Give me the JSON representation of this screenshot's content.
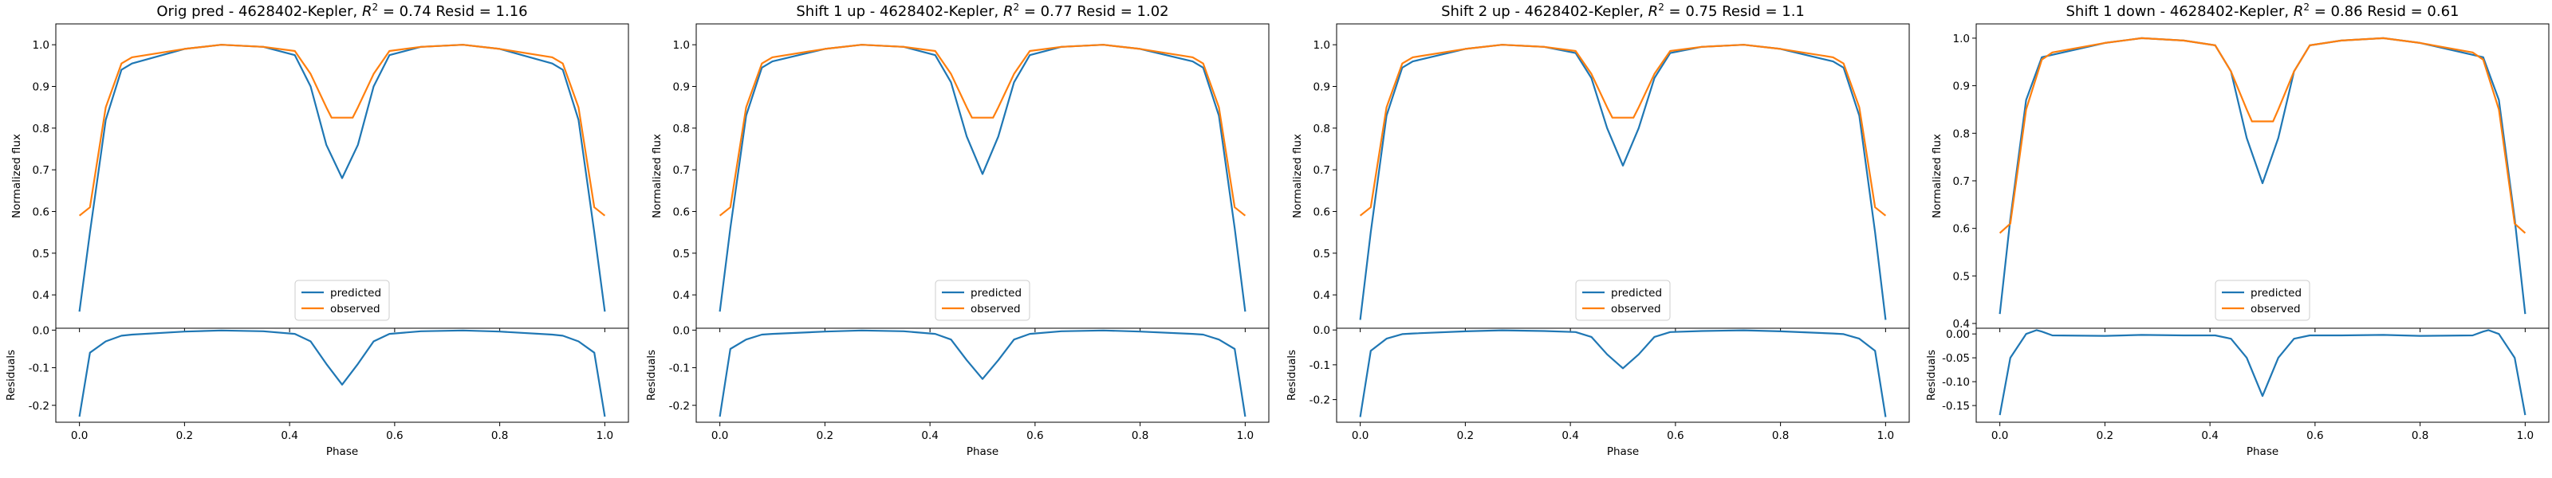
{
  "colors": {
    "predicted": "#1f77b4",
    "observed": "#ff7f0e",
    "axis": "#000000",
    "legend_border": "#cccccc"
  },
  "chart_data": [
    {
      "type": "line",
      "title": "Orig pred - 4628402-Kepler, $R^2 = 0.74$ Resid = 1.16",
      "title_parts": {
        "pre": "Orig pred - 4628402-Kepler, ",
        "r2_label": "R",
        "r2_sup": "2",
        "post": " = 0.74 Resid = 1.16"
      },
      "top": {
        "ylabel": "Normalized flux",
        "ylim": [
          0.32,
          1.05
        ],
        "yticks": [
          0.4,
          0.5,
          0.6,
          0.7,
          0.8,
          0.9,
          1.0
        ],
        "ytick_labels": [
          "0.4",
          "0.5",
          "0.6",
          "0.7",
          "0.8",
          "0.9",
          "1.0"
        ],
        "legend": {
          "placement": "lower-center",
          "entries": [
            "predicted",
            "observed"
          ]
        },
        "series": [
          {
            "name": "predicted",
            "x": [
              0.0,
              0.02,
              0.05,
              0.08,
              0.1,
              0.2,
              0.27,
              0.35,
              0.41,
              0.44,
              0.47,
              0.5,
              0.53,
              0.56,
              0.59,
              0.65,
              0.73,
              0.8,
              0.9,
              0.92,
              0.95,
              0.98,
              1.0
            ],
            "y": [
              0.36,
              0.55,
              0.82,
              0.94,
              0.955,
              0.99,
              1.0,
              0.995,
              0.975,
              0.9,
              0.76,
              0.68,
              0.76,
              0.9,
              0.975,
              0.995,
              1.0,
              0.99,
              0.955,
              0.94,
              0.82,
              0.55,
              0.36
            ]
          },
          {
            "name": "observed",
            "x": [
              0.0,
              0.02,
              0.05,
              0.08,
              0.1,
              0.2,
              0.27,
              0.35,
              0.41,
              0.44,
              0.47,
              0.48,
              0.52,
              0.53,
              0.56,
              0.59,
              0.65,
              0.73,
              0.8,
              0.9,
              0.92,
              0.95,
              0.98,
              1.0
            ],
            "y": [
              0.59,
              0.61,
              0.85,
              0.955,
              0.97,
              0.99,
              1.0,
              0.995,
              0.985,
              0.93,
              0.85,
              0.825,
              0.825,
              0.85,
              0.93,
              0.985,
              0.995,
              1.0,
              0.99,
              0.97,
              0.955,
              0.85,
              0.61,
              0.59
            ]
          }
        ]
      },
      "bottom": {
        "ylabel": "Residuals",
        "xlabel": "Phase",
        "ylim": [
          -0.245,
          0.005
        ],
        "yticks": [
          -0.2,
          -0.1,
          0.0
        ],
        "ytick_labels": [
          "-0.2",
          "-0.1",
          "0.0"
        ],
        "xticks": [
          0.0,
          0.2,
          0.4,
          0.6,
          0.8,
          1.0
        ],
        "xtick_labels": [
          "0.0",
          "0.2",
          "0.4",
          "0.6",
          "0.8",
          "1.0"
        ],
        "series": [
          {
            "name": "residual",
            "x": [
              0.0,
              0.02,
              0.05,
              0.08,
              0.1,
              0.2,
              0.27,
              0.35,
              0.41,
              0.44,
              0.47,
              0.5,
              0.53,
              0.56,
              0.59,
              0.65,
              0.73,
              0.8,
              0.9,
              0.92,
              0.95,
              0.98,
              1.0
            ],
            "y": [
              -0.23,
              -0.06,
              -0.03,
              -0.015,
              -0.012,
              -0.004,
              -0.001,
              -0.003,
              -0.01,
              -0.03,
              -0.09,
              -0.145,
              -0.09,
              -0.03,
              -0.01,
              -0.003,
              -0.001,
              -0.004,
              -0.012,
              -0.015,
              -0.03,
              -0.06,
              -0.23
            ]
          }
        ]
      }
    },
    {
      "type": "line",
      "title": "Shift 1 up - 4628402-Kepler, $R^2 = 0.77$ Resid = 1.02",
      "title_parts": {
        "pre": "Shift 1 up - 4628402-Kepler, ",
        "r2_label": "R",
        "r2_sup": "2",
        "post": " = 0.77 Resid = 1.02"
      },
      "top": {
        "ylabel": "Normalized flux",
        "ylim": [
          0.32,
          1.05
        ],
        "yticks": [
          0.4,
          0.5,
          0.6,
          0.7,
          0.8,
          0.9,
          1.0
        ],
        "ytick_labels": [
          "0.4",
          "0.5",
          "0.6",
          "0.7",
          "0.8",
          "0.9",
          "1.0"
        ],
        "legend": {
          "placement": "lower-center",
          "entries": [
            "predicted",
            "observed"
          ]
        },
        "series": [
          {
            "name": "predicted",
            "x": [
              0.0,
              0.02,
              0.05,
              0.08,
              0.1,
              0.2,
              0.27,
              0.35,
              0.41,
              0.44,
              0.47,
              0.5,
              0.53,
              0.56,
              0.59,
              0.65,
              0.73,
              0.8,
              0.9,
              0.92,
              0.95,
              0.98,
              1.0
            ],
            "y": [
              0.36,
              0.56,
              0.83,
              0.945,
              0.96,
              0.99,
              1.0,
              0.995,
              0.975,
              0.91,
              0.78,
              0.69,
              0.78,
              0.91,
              0.975,
              0.995,
              1.0,
              0.99,
              0.96,
              0.945,
              0.83,
              0.56,
              0.36
            ]
          },
          {
            "name": "observed",
            "x": [
              0.0,
              0.02,
              0.05,
              0.08,
              0.1,
              0.2,
              0.27,
              0.35,
              0.41,
              0.44,
              0.47,
              0.48,
              0.52,
              0.53,
              0.56,
              0.59,
              0.65,
              0.73,
              0.8,
              0.9,
              0.92,
              0.95,
              0.98,
              1.0
            ],
            "y": [
              0.59,
              0.61,
              0.85,
              0.955,
              0.97,
              0.99,
              1.0,
              0.995,
              0.985,
              0.93,
              0.85,
              0.825,
              0.825,
              0.85,
              0.93,
              0.985,
              0.995,
              1.0,
              0.99,
              0.97,
              0.955,
              0.85,
              0.61,
              0.59
            ]
          }
        ]
      },
      "bottom": {
        "ylabel": "Residuals",
        "xlabel": "Phase",
        "ylim": [
          -0.245,
          0.005
        ],
        "yticks": [
          -0.2,
          -0.1,
          0.0
        ],
        "ytick_labels": [
          "-0.2",
          "-0.1",
          "0.0"
        ],
        "xticks": [
          0.0,
          0.2,
          0.4,
          0.6,
          0.8,
          1.0
        ],
        "xtick_labels": [
          "0.0",
          "0.2",
          "0.4",
          "0.6",
          "0.8",
          "1.0"
        ],
        "series": [
          {
            "name": "residual",
            "x": [
              0.0,
              0.02,
              0.05,
              0.08,
              0.1,
              0.2,
              0.27,
              0.35,
              0.41,
              0.44,
              0.47,
              0.5,
              0.53,
              0.56,
              0.59,
              0.65,
              0.73,
              0.8,
              0.9,
              0.92,
              0.95,
              0.98,
              1.0
            ],
            "y": [
              -0.23,
              -0.05,
              -0.025,
              -0.012,
              -0.01,
              -0.004,
              -0.001,
              -0.003,
              -0.01,
              -0.025,
              -0.08,
              -0.13,
              -0.08,
              -0.025,
              -0.01,
              -0.003,
              -0.001,
              -0.004,
              -0.01,
              -0.012,
              -0.025,
              -0.05,
              -0.23
            ]
          }
        ]
      }
    },
    {
      "type": "line",
      "title": "Shift 2 up - 4628402-Kepler, $R^2 = 0.75$ Resid = 1.1",
      "title_parts": {
        "pre": "Shift 2 up - 4628402-Kepler, ",
        "r2_label": "R",
        "r2_sup": "2",
        "post": " = 0.75 Resid = 1.1"
      },
      "top": {
        "ylabel": "Normalized flux",
        "ylim": [
          0.32,
          1.05
        ],
        "yticks": [
          0.4,
          0.5,
          0.6,
          0.7,
          0.8,
          0.9,
          1.0
        ],
        "ytick_labels": [
          "0.4",
          "0.5",
          "0.6",
          "0.7",
          "0.8",
          "0.9",
          "1.0"
        ],
        "legend": {
          "placement": "lower-center",
          "entries": [
            "predicted",
            "observed"
          ]
        },
        "series": [
          {
            "name": "predicted",
            "x": [
              0.0,
              0.02,
              0.05,
              0.08,
              0.1,
              0.2,
              0.27,
              0.35,
              0.41,
              0.44,
              0.47,
              0.5,
              0.53,
              0.56,
              0.59,
              0.65,
              0.73,
              0.8,
              0.9,
              0.92,
              0.95,
              0.98,
              1.0
            ],
            "y": [
              0.34,
              0.55,
              0.83,
              0.945,
              0.96,
              0.99,
              1.0,
              0.995,
              0.98,
              0.92,
              0.8,
              0.71,
              0.8,
              0.92,
              0.98,
              0.995,
              1.0,
              0.99,
              0.96,
              0.945,
              0.83,
              0.55,
              0.34
            ]
          },
          {
            "name": "observed",
            "x": [
              0.0,
              0.02,
              0.05,
              0.08,
              0.1,
              0.2,
              0.27,
              0.35,
              0.41,
              0.44,
              0.47,
              0.48,
              0.52,
              0.53,
              0.56,
              0.59,
              0.65,
              0.73,
              0.8,
              0.9,
              0.92,
              0.95,
              0.98,
              1.0
            ],
            "y": [
              0.59,
              0.61,
              0.85,
              0.955,
              0.97,
              0.99,
              1.0,
              0.995,
              0.985,
              0.93,
              0.85,
              0.825,
              0.825,
              0.85,
              0.93,
              0.985,
              0.995,
              1.0,
              0.99,
              0.97,
              0.955,
              0.85,
              0.61,
              0.59
            ]
          }
        ]
      },
      "bottom": {
        "ylabel": "Residuals",
        "xlabel": "Phase",
        "ylim": [
          -0.265,
          0.005
        ],
        "yticks": [
          -0.2,
          -0.1,
          0.0
        ],
        "ytick_labels": [
          "-0.2",
          "-0.1",
          "0.0"
        ],
        "xticks": [
          0.0,
          0.2,
          0.4,
          0.6,
          0.8,
          1.0
        ],
        "xtick_labels": [
          "0.0",
          "0.2",
          "0.4",
          "0.6",
          "0.8",
          "1.0"
        ],
        "series": [
          {
            "name": "residual",
            "x": [
              0.0,
              0.02,
              0.05,
              0.08,
              0.1,
              0.2,
              0.27,
              0.35,
              0.41,
              0.44,
              0.47,
              0.5,
              0.53,
              0.56,
              0.59,
              0.65,
              0.73,
              0.8,
              0.9,
              0.92,
              0.95,
              0.98,
              1.0
            ],
            "y": [
              -0.25,
              -0.06,
              -0.025,
              -0.012,
              -0.01,
              -0.004,
              -0.001,
              -0.003,
              -0.006,
              -0.02,
              -0.07,
              -0.11,
              -0.07,
              -0.02,
              -0.006,
              -0.003,
              -0.001,
              -0.004,
              -0.01,
              -0.012,
              -0.025,
              -0.06,
              -0.25
            ]
          }
        ]
      }
    },
    {
      "type": "line",
      "title": "Shift 1 down - 4628402-Kepler, $R^2 = 0.86$ Resid = 0.61",
      "title_parts": {
        "pre": "Shift 1 down - 4628402-Kepler, ",
        "r2_label": "R",
        "r2_sup": "2",
        "post": " = 0.86 Resid = 0.61"
      },
      "top": {
        "ylabel": "Normalized flux",
        "ylim": [
          0.39,
          1.03
        ],
        "yticks": [
          0.4,
          0.5,
          0.6,
          0.7,
          0.8,
          0.9,
          1.0
        ],
        "ytick_labels": [
          "0.4",
          "0.5",
          "0.6",
          "0.7",
          "0.8",
          "0.9",
          "1.0"
        ],
        "legend": {
          "placement": "lower-center",
          "entries": [
            "predicted",
            "observed"
          ]
        },
        "series": [
          {
            "name": "predicted",
            "x": [
              0.0,
              0.02,
              0.05,
              0.08,
              0.1,
              0.2,
              0.27,
              0.35,
              0.41,
              0.44,
              0.47,
              0.5,
              0.53,
              0.56,
              0.59,
              0.65,
              0.73,
              0.8,
              0.9,
              0.92,
              0.95,
              0.98,
              1.0
            ],
            "y": [
              0.42,
              0.62,
              0.87,
              0.96,
              0.965,
              0.99,
              1.0,
              0.995,
              0.985,
              0.93,
              0.79,
              0.695,
              0.79,
              0.93,
              0.985,
              0.995,
              1.0,
              0.99,
              0.965,
              0.96,
              0.87,
              0.62,
              0.42
            ]
          },
          {
            "name": "observed",
            "x": [
              0.0,
              0.02,
              0.05,
              0.08,
              0.1,
              0.2,
              0.27,
              0.35,
              0.41,
              0.44,
              0.47,
              0.48,
              0.52,
              0.53,
              0.56,
              0.59,
              0.65,
              0.73,
              0.8,
              0.9,
              0.92,
              0.95,
              0.98,
              1.0
            ],
            "y": [
              0.59,
              0.61,
              0.85,
              0.955,
              0.97,
              0.99,
              1.0,
              0.995,
              0.985,
              0.93,
              0.85,
              0.825,
              0.825,
              0.85,
              0.93,
              0.985,
              0.995,
              1.0,
              0.99,
              0.97,
              0.955,
              0.85,
              0.61,
              0.59
            ]
          }
        ]
      },
      "bottom": {
        "ylabel": "Residuals",
        "xlabel": "Phase",
        "ylim": [
          -0.185,
          0.012
        ],
        "yticks": [
          -0.15,
          -0.1,
          -0.05,
          0.0
        ],
        "ytick_labels": [
          "-0.15",
          "-0.10",
          "-0.05",
          "0.00"
        ],
        "xticks": [
          0.0,
          0.2,
          0.4,
          0.6,
          0.8,
          1.0
        ],
        "xtick_labels": [
          "0.0",
          "0.2",
          "0.4",
          "0.6",
          "0.8",
          "1.0"
        ],
        "series": [
          {
            "name": "residual",
            "x": [
              0.0,
              0.02,
              0.05,
              0.07,
              0.08,
              0.1,
              0.2,
              0.27,
              0.35,
              0.41,
              0.44,
              0.47,
              0.5,
              0.53,
              0.56,
              0.59,
              0.65,
              0.73,
              0.8,
              0.9,
              0.92,
              0.93,
              0.95,
              0.98,
              1.0
            ],
            "y": [
              -0.17,
              -0.05,
              0.0,
              0.008,
              0.005,
              -0.003,
              -0.004,
              -0.002,
              -0.003,
              -0.003,
              -0.01,
              -0.05,
              -0.13,
              -0.05,
              -0.01,
              -0.003,
              -0.003,
              -0.002,
              -0.004,
              -0.003,
              0.005,
              0.008,
              0.0,
              -0.05,
              -0.17
            ]
          }
        ]
      }
    }
  ]
}
